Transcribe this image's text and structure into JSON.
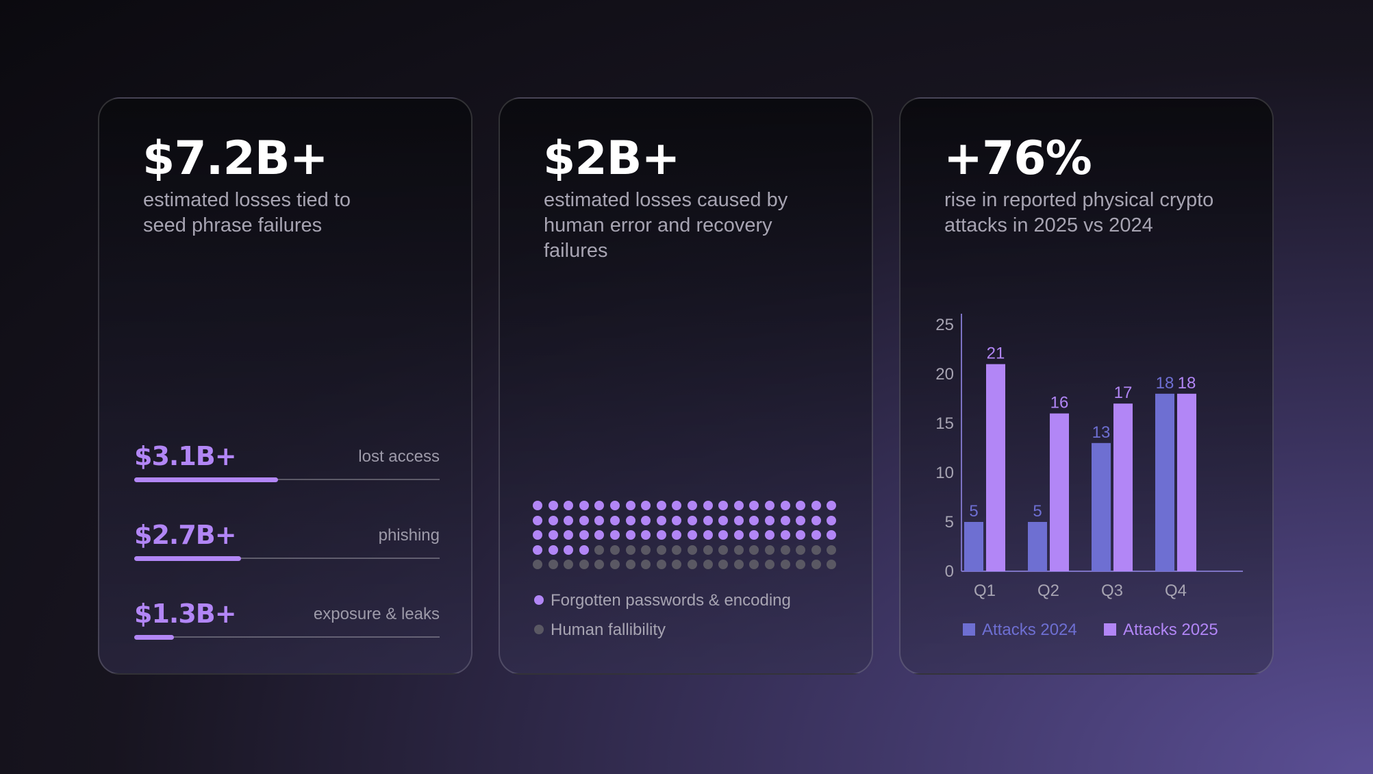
{
  "cards": [
    {
      "headline": "$7.2B+",
      "subtitle": "estimated losses tied to seed phrase failures",
      "breakdown": [
        {
          "amount": "$3.1B+",
          "label": "lost access",
          "fraction": 0.47
        },
        {
          "amount": "$2.7B+",
          "label": "phishing",
          "fraction": 0.35
        },
        {
          "amount": "$1.3B+",
          "label": "exposure & leaks",
          "fraction": 0.13
        }
      ]
    },
    {
      "headline": "$2B+",
      "subtitle": "estimated losses caused by human error and recovery failures",
      "dot_grid": {
        "total": 100,
        "highlighted": 64
      },
      "legend": [
        {
          "label": "Forgotten passwords & encoding",
          "color": "#b286f6"
        },
        {
          "label": "Human fallibility",
          "color": "#5a5863"
        }
      ]
    },
    {
      "headline": "+76%",
      "subtitle": "rise in reported physical crypto attacks in 2025 vs 2024"
    }
  ],
  "colors": {
    "accent": "#b286f6",
    "series_2024": "#6e6fd2",
    "series_2025": "#b286f6",
    "muted_dot": "#5a5863"
  },
  "chart_data": {
    "type": "bar",
    "categories": [
      "Q1",
      "Q2",
      "Q3",
      "Q4"
    ],
    "series": [
      {
        "name": "Attacks 2024",
        "values": [
          5,
          5,
          13,
          18
        ],
        "color": "#6e6fd2"
      },
      {
        "name": "Attacks 2025",
        "values": [
          21,
          16,
          17,
          18
        ],
        "color": "#b286f6"
      }
    ],
    "yticks": [
      0,
      5,
      10,
      15,
      20,
      25
    ],
    "ylim": [
      0,
      27
    ],
    "grid": false,
    "legend": "bottom",
    "data_labels": true
  }
}
